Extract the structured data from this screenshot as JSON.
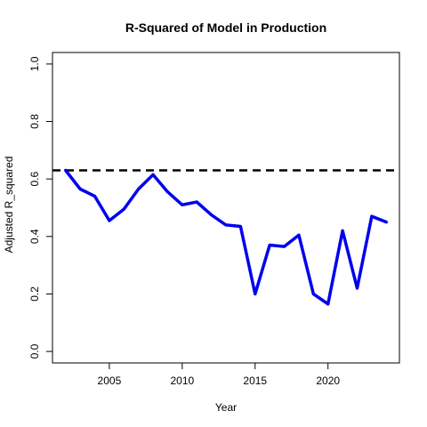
{
  "chart_data": {
    "type": "line",
    "title": "R-Squared of Model in Production",
    "xlabel": "Year",
    "ylabel": "Adjusted R_squared",
    "xlim": [
      2001.1,
      2024.9
    ],
    "ylim": [
      -0.04,
      1.04
    ],
    "xticks": [
      2005,
      2010,
      2015,
      2020
    ],
    "yticks": [
      0.0,
      0.2,
      0.4,
      0.6,
      0.8,
      1.0
    ],
    "ytick_labels": [
      "0.0",
      "0.2",
      "0.4",
      "0.6",
      "0.8",
      "1.0"
    ],
    "xtick_labels": [
      "2005",
      "2010",
      "2015",
      "2020"
    ],
    "grid": false,
    "series": [
      {
        "color": "#0000ee",
        "x": [
          2002,
          2003,
          2004,
          2005,
          2006,
          2007,
          2008,
          2009,
          2010,
          2011,
          2012,
          2013,
          2014,
          2015,
          2016,
          2017,
          2018,
          2019,
          2020,
          2021,
          2022,
          2023,
          2024
        ],
        "y": [
          0.63,
          0.565,
          0.54,
          0.455,
          0.495,
          0.565,
          0.615,
          0.555,
          0.51,
          0.52,
          0.475,
          0.44,
          0.435,
          0.2,
          0.37,
          0.365,
          0.405,
          0.2,
          0.165,
          0.42,
          0.22,
          0.47,
          0.45
        ]
      }
    ],
    "reference_line": {
      "y": 0.63,
      "style": "dashed",
      "color": "#000000"
    }
  }
}
